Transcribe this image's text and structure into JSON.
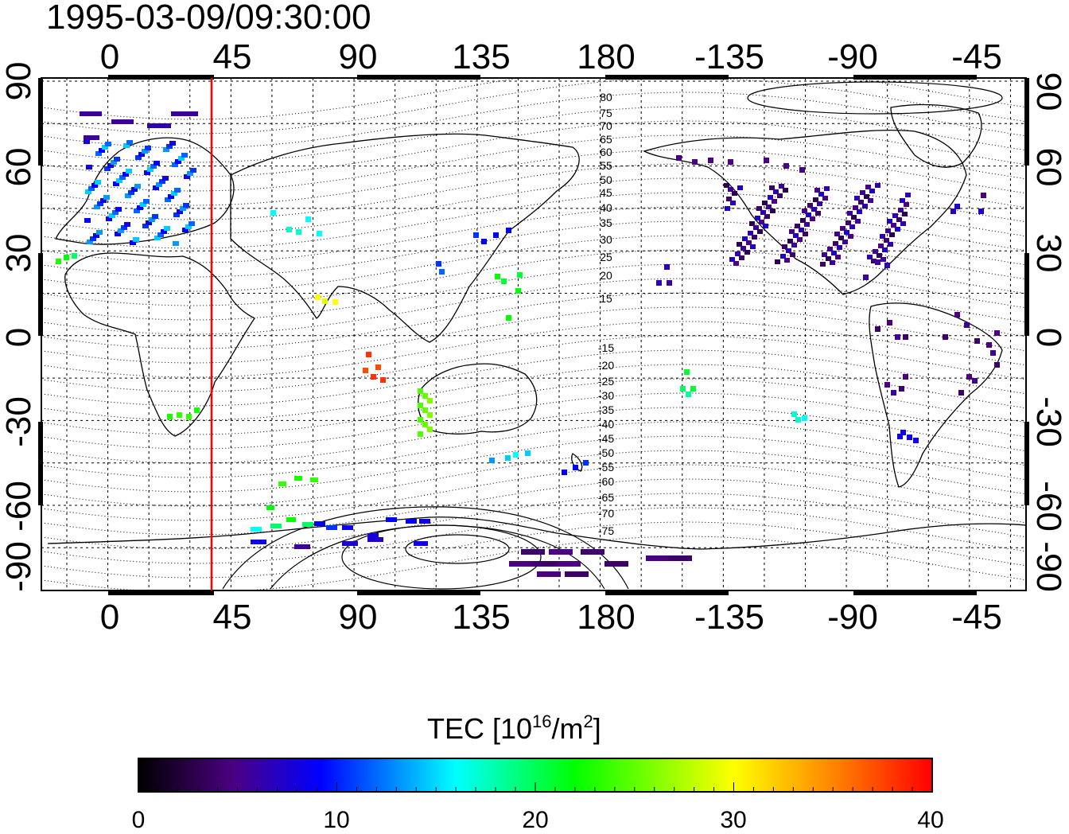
{
  "title": "1995-03-09/09:30:00",
  "map": {
    "top_lon_labels": [
      "0",
      "45",
      "90",
      "135",
      "180",
      "-135",
      "-90",
      "-45"
    ],
    "bottom_lon_labels": [
      "0",
      "45",
      "90",
      "135",
      "180",
      "-135",
      "-90",
      "-45"
    ],
    "lat_labels_left": [
      "90",
      "60",
      "30",
      "0",
      "-30",
      "-60",
      "-90"
    ],
    "lat_labels_right": [
      "90",
      "60",
      "30",
      "0",
      "-30",
      "-60",
      "-90"
    ],
    "terminator_color": "#ff0000",
    "mag_lat_labels_north": [
      "80",
      "75",
      "70",
      "65",
      "60",
      "55",
      "50",
      "45",
      "40",
      "35",
      "30",
      "25",
      "20",
      "15"
    ],
    "mag_lat_labels_south": [
      "-15",
      "-20",
      "-25",
      "-30",
      "-35",
      "-40",
      "-45",
      "-50",
      "-55",
      "-60",
      "-65",
      "-70",
      "-75"
    ]
  },
  "colorbar": {
    "label_main": "TEC  [10",
    "label_sup1": "16",
    "label_mid": "/m",
    "label_sup2": "2",
    "label_end": "]",
    "ticks": [
      "0",
      "10",
      "20",
      "30",
      "40"
    ],
    "colors": [
      "#000000",
      "#4b0082",
      "#0000ff",
      "#00ffff",
      "#00ff00",
      "#ffff00",
      "#ff0000"
    ]
  }
}
